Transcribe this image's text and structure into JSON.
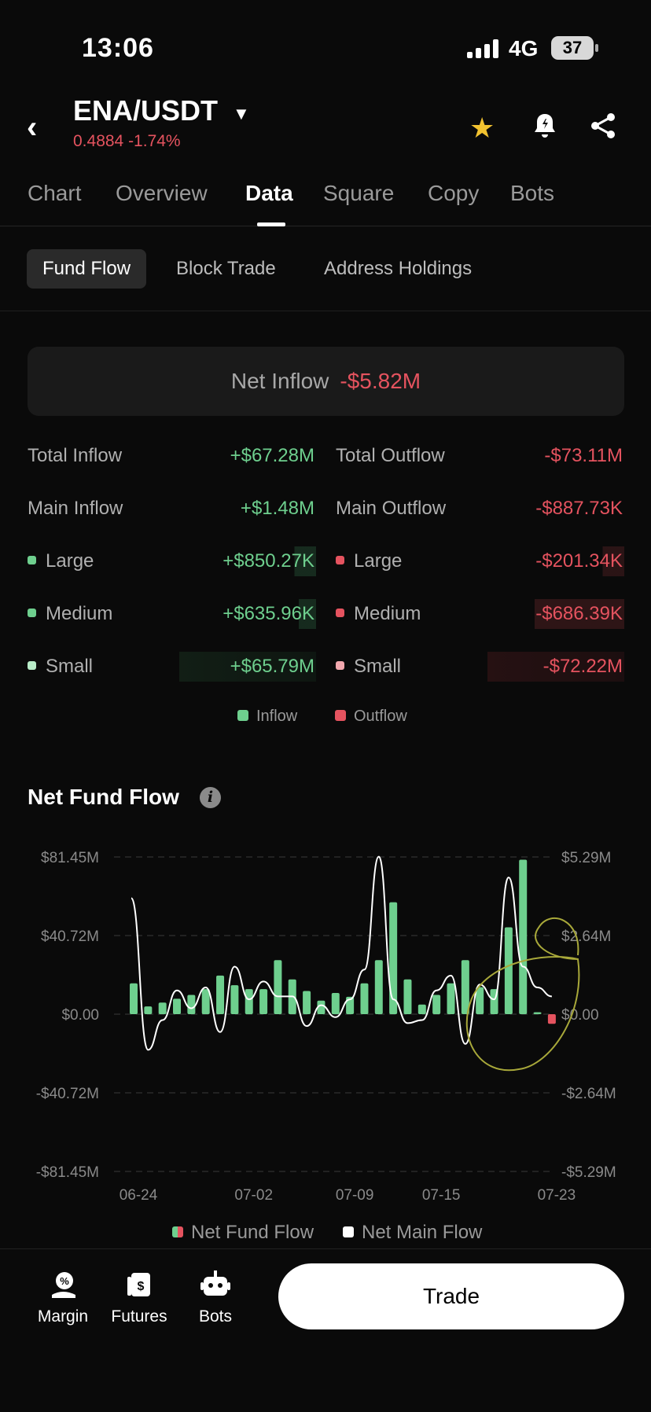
{
  "status": {
    "time": "13:06",
    "network": "4G",
    "battery": "37"
  },
  "header": {
    "pair": "ENA/USDT",
    "price_change": "0.4884 -1.74%"
  },
  "tabs": [
    "Chart",
    "Overview",
    "Data",
    "Square",
    "Copy",
    "Bots"
  ],
  "subtabs": [
    "Fund Flow",
    "Block Trade",
    "Address Holdings"
  ],
  "net_inflow": {
    "label": "Net Inflow",
    "value": "-$5.82M"
  },
  "flow_table": {
    "total_inflow": {
      "label": "Total Inflow",
      "value": "+$67.28M"
    },
    "total_outflow": {
      "label": "Total Outflow",
      "value": "-$73.11M"
    },
    "main_inflow": {
      "label": "Main Inflow",
      "value": "+$1.48M"
    },
    "main_outflow": {
      "label": "Main Outflow",
      "value": "-$887.73K"
    },
    "large_in": {
      "label": "Large",
      "value": "+$850.27K"
    },
    "large_out": {
      "label": "Large",
      "value": "-$201.34K"
    },
    "medium_in": {
      "label": "Medium",
      "value": "+$635.96K"
    },
    "medium_out": {
      "label": "Medium",
      "value": "-$686.39K"
    },
    "small_in": {
      "label": "Small",
      "value": "+$65.79M"
    },
    "small_out": {
      "label": "Small",
      "value": "-$72.22M"
    }
  },
  "legend": {
    "inflow": "Inflow",
    "outflow": "Outflow"
  },
  "net_fund_flow": {
    "title": "Net Fund Flow"
  },
  "chart_data": {
    "type": "bar",
    "categories": [
      "06-24",
      "06-25",
      "06-26",
      "06-27",
      "06-28",
      "06-29",
      "06-30",
      "07-01",
      "07-02",
      "07-03",
      "07-04",
      "07-05",
      "07-06",
      "07-07",
      "07-08",
      "07-09",
      "07-10",
      "07-11",
      "07-12",
      "07-13",
      "07-14",
      "07-15",
      "07-16",
      "07-17",
      "07-18",
      "07-19",
      "07-20",
      "07-21",
      "07-22",
      "07-23"
    ],
    "x_tick_labels": [
      "06-24",
      "07-02",
      "07-09",
      "07-15",
      "07-23"
    ],
    "series": [
      {
        "name": "Net Fund Flow",
        "axis": "left",
        "values": [
          16,
          4,
          6,
          8,
          10,
          13,
          20,
          15,
          13,
          13,
          28,
          18,
          12,
          7,
          11,
          9,
          16,
          28,
          58,
          18,
          5,
          10,
          16,
          28,
          14,
          13,
          45,
          80,
          1,
          -5
        ]
      },
      {
        "name": "Net Main Flow",
        "axis": "right",
        "values": [
          3.9,
          -1.2,
          -0.2,
          0.8,
          0.2,
          0.9,
          -0.6,
          1.6,
          0.5,
          1.1,
          0.6,
          0.6,
          -0.4,
          0.3,
          -0.1,
          0.5,
          1.5,
          5.3,
          0.5,
          -0.3,
          -0.2,
          0.8,
          1.3,
          -1.0,
          1.0,
          0.5,
          4.6,
          1.6,
          0.9,
          0.6
        ]
      }
    ],
    "y_left_ticks": [
      "$81.45M",
      "$40.72M",
      "$0.00",
      "-$40.72M",
      "-$81.45M"
    ],
    "y_right_ticks": [
      "$5.29M",
      "$2.64M",
      "$0.00",
      "-$2.64M",
      "-$5.29M"
    ],
    "ylim_left": [
      -81.45,
      81.45
    ],
    "ylim_right": [
      -5.29,
      5.29
    ],
    "colors": {
      "positive": "#6ecf8e",
      "negative": "#e5535f",
      "line": "#ffffff",
      "grid": "#3a3a3a",
      "annotation": "#a8a83a"
    },
    "legend": [
      "Net Fund Flow",
      "Net Main Flow"
    ],
    "grid": true
  },
  "bottom_nav": {
    "margin": "Margin",
    "futures": "Futures",
    "bots": "Bots",
    "trade": "Trade"
  }
}
